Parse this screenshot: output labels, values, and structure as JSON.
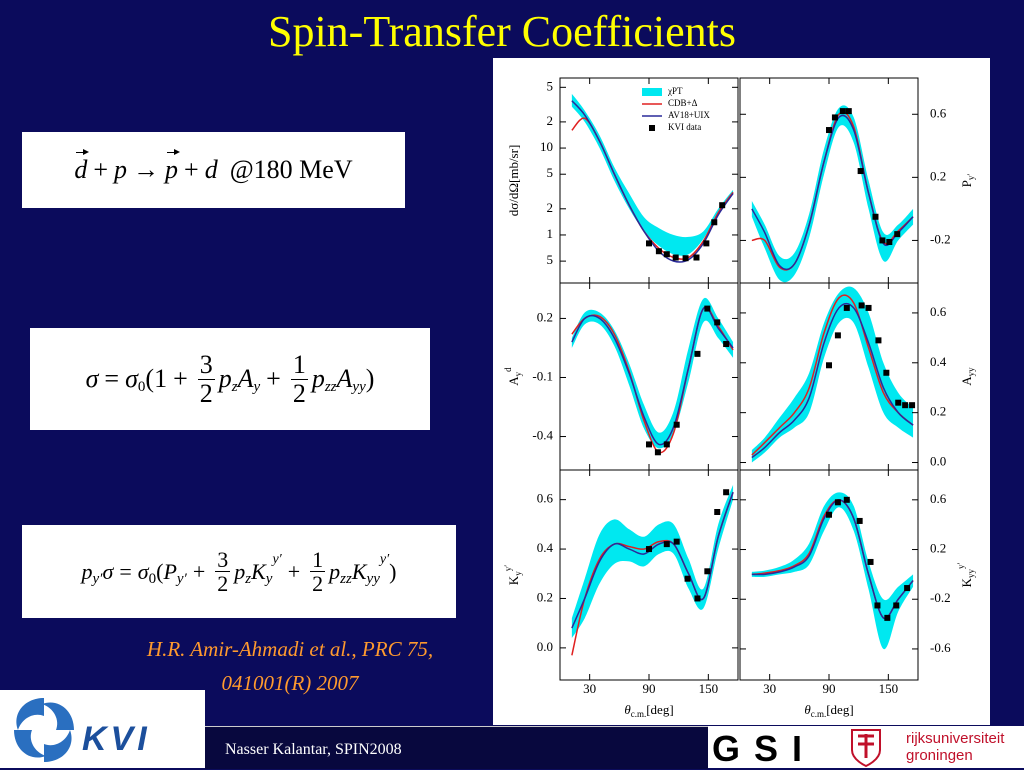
{
  "title": "Spin-Transfer Coefficients",
  "equations": [
    {
      "parts": [
        "d",
        "+",
        "p",
        "→",
        "p",
        "+",
        "d",
        "@180 MeV"
      ]
    },
    {
      "parts": [
        "σ",
        "=",
        "σ",
        "0",
        "(1",
        "+",
        "3",
        "2",
        "p",
        "z",
        "A",
        "y",
        "+",
        "1",
        "2",
        "p",
        "zz",
        "A",
        "yy",
        ")"
      ]
    },
    {
      "parts": [
        "p",
        "y′",
        "σ",
        "=",
        "σ",
        "0",
        "(",
        "P",
        "y′",
        "+",
        "3",
        "2",
        "p",
        "z",
        "K",
        "y",
        "y′",
        "+",
        "1",
        "2",
        "p",
        "zz",
        "K",
        "yy",
        "y′",
        ")"
      ]
    }
  ],
  "citation": [
    "H.R. Amir-Ahmadi et al., PRC 75,",
    "041001(R) 2007"
  ],
  "footer": "Nasser Kalantar, SPIN2008",
  "logos": {
    "kvi": "KVI",
    "gsi": "GSI",
    "groningen": [
      "rijksuniversiteit",
      "groningen"
    ]
  },
  "figure": {
    "legend": [
      {
        "name": "χPT",
        "color": "#00e8f0"
      },
      {
        "name": "CDB+Δ",
        "color": "#e02020"
      },
      {
        "name": "AV18+UIX",
        "color": "#2a2a9a"
      },
      {
        "name": "KVI data",
        "color": "#000000"
      }
    ],
    "xlabel": {
      "base": "θ",
      "sub": "c.m.",
      "rest": "[deg]"
    },
    "xlim": [
      0,
      180
    ],
    "xticks": [
      30,
      90,
      150
    ],
    "x": [
      12,
      25,
      40,
      55,
      70,
      85,
      100,
      115,
      130,
      145,
      160,
      175
    ],
    "panels": [
      {
        "ylabel": {
          "text": "dσ/dΩ[mb/sr]"
        },
        "log": true,
        "ylim": [
          0.28,
          64
        ],
        "yticks": [
          {
            "value": 50,
            "label": "5"
          },
          {
            "value": 20,
            "label": "2"
          },
          10,
          {
            "value": 5,
            "label": "5"
          },
          {
            "value": 2,
            "label": "2"
          },
          1,
          {
            "value": 0.5,
            "label": "5"
          }
        ],
        "band": {
          "low": [
            30,
            20,
            10,
            4.2,
            2.0,
            1.1,
            0.75,
            0.6,
            0.6,
            0.9,
            1.8,
            3.0
          ],
          "high": [
            42,
            27,
            14,
            6,
            3,
            1.6,
            1.2,
            1.0,
            0.95,
            1.1,
            2.0,
            3.3
          ]
        },
        "lines": [
          [
            16,
            22,
            12,
            5,
            2.2,
            1.1,
            0.7,
            0.55,
            0.55,
            0.85,
            1.8,
            3.1
          ],
          [
            35,
            24,
            12,
            5,
            2.2,
            1.1,
            0.65,
            0.5,
            0.52,
            0.8,
            1.7,
            3.0
          ]
        ],
        "data": {
          "x": [
            90,
            100,
            108,
            117,
            127,
            138,
            148,
            156,
            164
          ],
          "y": [
            0.8,
            0.65,
            0.6,
            0.55,
            0.54,
            0.55,
            0.8,
            1.4,
            2.2
          ]
        }
      },
      {
        "ylabel": {
          "base": "P",
          "sub": "y′"
        },
        "ylim": [
          -0.47,
          0.83
        ],
        "yticks": [
          0.6,
          0.2,
          -0.2
        ],
        "band": {
          "low": [
            -0.05,
            -0.25,
            -0.45,
            -0.42,
            -0.18,
            0.22,
            0.52,
            0.42,
            0.0,
            -0.33,
            -0.2,
            -0.1
          ],
          "high": [
            0.05,
            -0.1,
            -0.3,
            -0.28,
            -0.03,
            0.38,
            0.64,
            0.58,
            0.18,
            -0.15,
            -0.1,
            0.0
          ]
        },
        "lines": [
          [
            -0.2,
            -0.2,
            -0.37,
            -0.35,
            -0.1,
            0.3,
            0.6,
            0.52,
            0.1,
            -0.21,
            -0.14,
            -0.05
          ],
          [
            0.0,
            -0.15,
            -0.36,
            -0.35,
            -0.1,
            0.3,
            0.58,
            0.5,
            0.1,
            -0.22,
            -0.15,
            -0.05
          ]
        ],
        "data": {
          "x": [
            90,
            96,
            104,
            110,
            122,
            137,
            144,
            151,
            159
          ],
          "y": [
            0.5,
            0.58,
            0.62,
            0.62,
            0.24,
            -0.05,
            -0.2,
            -0.21,
            -0.16
          ]
        }
      },
      {
        "ylabel": {
          "base": "A",
          "sub": "y",
          "sup": "d"
        },
        "ylim": [
          -0.57,
          0.38
        ],
        "yticks": [
          0.2,
          -0.1,
          -0.4
        ],
        "band": {
          "low": [
            0.05,
            0.17,
            0.17,
            0.06,
            -0.14,
            -0.36,
            -0.46,
            -0.38,
            -0.12,
            0.18,
            0.1,
            0.0
          ],
          "high": [
            0.1,
            0.23,
            0.23,
            0.14,
            -0.03,
            -0.24,
            -0.38,
            -0.27,
            0.05,
            0.3,
            0.2,
            0.08
          ]
        },
        "lines": [
          [
            0.12,
            0.2,
            0.21,
            0.12,
            -0.07,
            -0.32,
            -0.48,
            -0.38,
            -0.05,
            0.25,
            0.16,
            0.04
          ],
          [
            0.08,
            0.2,
            0.2,
            0.1,
            -0.08,
            -0.3,
            -0.44,
            -0.35,
            -0.05,
            0.25,
            0.15,
            0.05
          ]
        ],
        "data": {
          "x": [
            90,
            99,
            108,
            118,
            139,
            149,
            159,
            168
          ],
          "y": [
            -0.44,
            -0.48,
            -0.44,
            -0.34,
            0.02,
            0.25,
            0.18,
            0.07
          ]
        }
      },
      {
        "ylabel": {
          "base": "A",
          "sub": "yy"
        },
        "ylim": [
          -0.03,
          0.72
        ],
        "yticks": [
          0.6,
          0.4,
          0.2,
          {
            "value": 0,
            "label": "0.0"
          }
        ],
        "band": {
          "low": [
            0.0,
            0.04,
            0.1,
            0.14,
            0.2,
            0.42,
            0.56,
            0.56,
            0.38,
            0.2,
            0.14,
            0.1
          ],
          "high": [
            0.05,
            0.1,
            0.18,
            0.26,
            0.36,
            0.56,
            0.68,
            0.7,
            0.6,
            0.4,
            0.28,
            0.22
          ]
        },
        "lines": [
          [
            0.03,
            0.08,
            0.14,
            0.2,
            0.3,
            0.52,
            0.66,
            0.64,
            0.46,
            0.28,
            0.2,
            0.15
          ],
          [
            0.02,
            0.06,
            0.12,
            0.17,
            0.26,
            0.48,
            0.62,
            0.62,
            0.48,
            0.3,
            0.2,
            0.15
          ]
        ],
        "data": {
          "x": [
            90,
            99,
            108,
            123,
            130,
            140,
            148,
            160,
            167,
            174
          ],
          "y": [
            0.39,
            0.51,
            0.62,
            0.63,
            0.62,
            0.49,
            0.36,
            0.24,
            0.23,
            0.23
          ]
        }
      },
      {
        "ylabel": {
          "base": "K",
          "sub": "y",
          "sup": "y′"
        },
        "ylim": [
          -0.13,
          0.72
        ],
        "yticks": [
          0.6,
          0.4,
          0.2,
          {
            "value": 0,
            "label": "0.0"
          }
        ],
        "band": {
          "low": [
            0.04,
            0.12,
            0.26,
            0.34,
            0.35,
            0.33,
            0.38,
            0.38,
            0.24,
            0.16,
            0.4,
            0.6
          ],
          "high": [
            0.12,
            0.28,
            0.46,
            0.52,
            0.48,
            0.45,
            0.5,
            0.5,
            0.36,
            0.24,
            0.5,
            0.66
          ]
        },
        "lines": [
          [
            -0.03,
            0.2,
            0.36,
            0.42,
            0.41,
            0.4,
            0.43,
            0.42,
            0.3,
            0.2,
            0.45,
            0.63
          ],
          [
            0.08,
            0.2,
            0.35,
            0.42,
            0.4,
            0.38,
            0.42,
            0.42,
            0.3,
            0.2,
            0.45,
            0.63
          ]
        ],
        "data": {
          "x": [
            90,
            108,
            118,
            129,
            139,
            149,
            159,
            168
          ],
          "y": [
            0.4,
            0.42,
            0.43,
            0.28,
            0.2,
            0.31,
            0.55,
            0.63
          ]
        }
      },
      {
        "ylabel": {
          "base": "K",
          "sub": "yy",
          "sup": "y′"
        },
        "ylim": [
          -0.85,
          0.84
        ],
        "yticks": [
          0.6,
          0.2,
          -0.2,
          -0.6
        ],
        "band": {
          "low": [
            -0.02,
            -0.02,
            0.0,
            0.02,
            0.08,
            0.35,
            0.54,
            0.35,
            -0.12,
            -0.6,
            -0.3,
            -0.1
          ],
          "high": [
            0.02,
            0.03,
            0.06,
            0.12,
            0.25,
            0.55,
            0.66,
            0.55,
            0.1,
            -0.2,
            -0.1,
            0.0
          ]
        },
        "lines": [
          [
            0.0,
            0.01,
            0.03,
            0.07,
            0.17,
            0.47,
            0.6,
            0.45,
            0.0,
            -0.35,
            -0.2,
            -0.05
          ],
          [
            0.0,
            0.0,
            0.02,
            0.06,
            0.15,
            0.45,
            0.6,
            0.45,
            0.0,
            -0.35,
            -0.2,
            -0.05
          ]
        ],
        "data": {
          "x": [
            90,
            99,
            108,
            121,
            132,
            139,
            149,
            158,
            169
          ],
          "y": [
            0.48,
            0.58,
            0.6,
            0.43,
            0.1,
            -0.25,
            -0.35,
            -0.25,
            -0.11
          ]
        }
      }
    ]
  }
}
